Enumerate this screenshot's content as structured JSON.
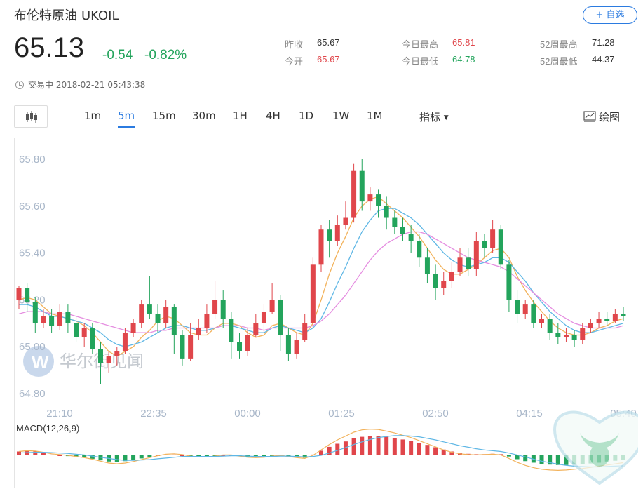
{
  "header": {
    "name": "布伦特原油",
    "code": "UKOIL",
    "watch_label": "+ 自选",
    "price": "65.13",
    "change": "-0.54",
    "change_pct": "-0.82%",
    "status": "交易中 2018-02-21 05:43:38"
  },
  "stats": {
    "prev_close_label": "昨收",
    "prev_close": "65.67",
    "open_label": "今开",
    "open": "65.67",
    "day_high_label": "今日最高",
    "day_high": "65.81",
    "day_low_label": "今日最低",
    "day_low": "64.78",
    "wk52_high_label": "52周最高",
    "wk52_high": "71.28",
    "wk52_low_label": "52周最低",
    "wk52_low": "44.37"
  },
  "toolbar": {
    "tabs": [
      "1m",
      "5m",
      "15m",
      "30m",
      "1H",
      "4H",
      "1D",
      "1W",
      "1M"
    ],
    "active_tab": "5m",
    "indicator_label": "指标",
    "draw_label": "绘图"
  },
  "colors": {
    "up": "#e0464b",
    "down": "#23a45c",
    "ma_fast": "#f2b25b",
    "ma_mid": "#5fb7e5",
    "ma_slow": "#e58de0",
    "accent": "#2b7be0"
  },
  "watermark": "华尔街见闻",
  "chart_data": {
    "type": "candlestick",
    "yticks": [
      "65.80",
      "65.60",
      "65.40",
      "65.20",
      "65.00",
      "64.80"
    ],
    "ylim": [
      64.8,
      65.8
    ],
    "xticks": [
      "21:10",
      "22:35",
      "00:00",
      "01:25",
      "02:50",
      "04:15",
      "05:40"
    ],
    "candles": [
      [
        65.2,
        65.25,
        65.26,
        65.16
      ],
      [
        65.25,
        65.19,
        65.27,
        65.15
      ],
      [
        65.19,
        65.1,
        65.21,
        65.06
      ],
      [
        65.1,
        65.13,
        65.16,
        65.08
      ],
      [
        65.13,
        65.09,
        65.16,
        65.06
      ],
      [
        65.09,
        65.15,
        65.18,
        65.07
      ],
      [
        65.15,
        65.1,
        65.18,
        65.06
      ],
      [
        65.1,
        65.04,
        65.13,
        65.02
      ],
      [
        65.04,
        65.08,
        65.1,
        65.0
      ],
      [
        65.08,
        64.99,
        65.1,
        64.97
      ],
      [
        64.99,
        64.93,
        65.02,
        64.84
      ],
      [
        64.93,
        64.96,
        64.98,
        64.89
      ],
      [
        64.96,
        64.98,
        65.0,
        64.92
      ],
      [
        64.98,
        65.06,
        65.08,
        64.97
      ],
      [
        65.06,
        65.1,
        65.12,
        65.04
      ],
      [
        65.1,
        65.18,
        65.2,
        65.08
      ],
      [
        65.18,
        65.14,
        65.3,
        65.12
      ],
      [
        65.14,
        65.1,
        65.18,
        65.06
      ],
      [
        65.1,
        65.17,
        65.2,
        65.08
      ],
      [
        65.17,
        65.05,
        65.18,
        64.97
      ],
      [
        65.05,
        64.95,
        65.07,
        64.92
      ],
      [
        64.95,
        65.05,
        65.1,
        64.94
      ],
      [
        65.05,
        65.08,
        65.12,
        65.03
      ],
      [
        65.08,
        65.14,
        65.18,
        65.06
      ],
      [
        65.14,
        65.2,
        65.28,
        65.12
      ],
      [
        65.2,
        65.12,
        65.24,
        65.08
      ],
      [
        65.12,
        65.02,
        65.15,
        64.95
      ],
      [
        65.02,
        64.98,
        65.06,
        64.95
      ],
      [
        64.98,
        65.05,
        65.08,
        64.96
      ],
      [
        65.05,
        65.1,
        65.14,
        65.04
      ],
      [
        65.1,
        65.15,
        65.18,
        65.06
      ],
      [
        65.15,
        65.2,
        65.27,
        65.14
      ],
      [
        65.2,
        65.05,
        65.22,
        64.98
      ],
      [
        65.05,
        64.97,
        65.08,
        64.94
      ],
      [
        64.97,
        65.03,
        65.06,
        64.95
      ],
      [
        65.03,
        65.1,
        65.14,
        65.02
      ],
      [
        65.1,
        65.35,
        65.38,
        65.08
      ],
      [
        65.35,
        65.5,
        65.52,
        65.32
      ],
      [
        65.5,
        65.45,
        65.54,
        65.38
      ],
      [
        65.45,
        65.52,
        65.56,
        65.43
      ],
      [
        65.52,
        65.55,
        65.62,
        65.5
      ],
      [
        65.55,
        65.75,
        65.78,
        65.53
      ],
      [
        65.75,
        65.62,
        65.8,
        65.58
      ],
      [
        65.62,
        65.65,
        65.68,
        65.58
      ],
      [
        65.65,
        65.6,
        65.67,
        65.55
      ],
      [
        65.6,
        65.55,
        65.64,
        65.5
      ],
      [
        65.55,
        65.51,
        65.58,
        65.48
      ],
      [
        65.51,
        65.48,
        65.55,
        65.45
      ],
      [
        65.48,
        65.45,
        65.52,
        65.4
      ],
      [
        65.45,
        65.38,
        65.48,
        65.34
      ],
      [
        65.38,
        65.31,
        65.42,
        65.27
      ],
      [
        65.31,
        65.25,
        65.35,
        65.2
      ],
      [
        65.25,
        65.28,
        65.32,
        65.22
      ],
      [
        65.28,
        65.32,
        65.36,
        65.25
      ],
      [
        65.32,
        65.38,
        65.42,
        65.3
      ],
      [
        65.38,
        65.33,
        65.42,
        65.3
      ],
      [
        65.33,
        65.45,
        65.49,
        65.3
      ],
      [
        65.45,
        65.42,
        65.48,
        65.38
      ],
      [
        65.42,
        65.5,
        65.54,
        65.4
      ],
      [
        65.5,
        65.35,
        65.52,
        65.33
      ],
      [
        65.35,
        65.2,
        65.37,
        65.15
      ],
      [
        65.2,
        65.14,
        65.24,
        65.1
      ],
      [
        65.14,
        65.18,
        65.2,
        65.12
      ],
      [
        65.18,
        65.1,
        65.2,
        65.08
      ],
      [
        65.1,
        65.12,
        65.14,
        65.08
      ],
      [
        65.12,
        65.06,
        65.14,
        65.03
      ],
      [
        65.06,
        65.04,
        65.1,
        65.01
      ],
      [
        65.04,
        65.05,
        65.08,
        65.02
      ],
      [
        65.05,
        65.03,
        65.07,
        65.0
      ],
      [
        65.03,
        65.08,
        65.1,
        65.01
      ],
      [
        65.08,
        65.1,
        65.12,
        65.06
      ],
      [
        65.1,
        65.12,
        65.15,
        65.08
      ],
      [
        65.12,
        65.11,
        65.15,
        65.09
      ],
      [
        65.11,
        65.14,
        65.16,
        65.1
      ],
      [
        65.14,
        65.13,
        65.17,
        65.11
      ]
    ],
    "ma_fast": [
      65.2,
      65.21,
      65.2,
      65.17,
      65.14,
      65.13,
      65.12,
      65.11,
      65.09,
      65.06,
      65.02,
      64.98,
      64.96,
      64.98,
      65.0,
      65.04,
      65.07,
      65.11,
      65.13,
      65.12,
      65.09,
      65.06,
      65.05,
      65.05,
      65.08,
      65.1,
      65.1,
      65.09,
      65.06,
      65.04,
      65.05,
      65.09,
      65.1,
      65.08,
      65.06,
      65.05,
      65.1,
      65.2,
      65.31,
      65.4,
      65.47,
      65.55,
      65.6,
      65.63,
      65.64,
      65.61,
      65.58,
      65.55,
      65.51,
      65.47,
      65.42,
      65.37,
      65.33,
      65.31,
      65.31,
      65.33,
      65.35,
      65.38,
      65.41,
      65.42,
      65.38,
      65.3,
      65.24,
      65.19,
      65.15,
      65.11,
      65.08,
      65.06,
      65.05,
      65.05,
      65.06,
      65.08,
      65.09,
      65.11,
      65.12
    ],
    "ma_mid": [
      65.18,
      65.18,
      65.17,
      65.15,
      65.13,
      65.13,
      65.12,
      65.11,
      65.1,
      65.08,
      65.06,
      65.03,
      65.01,
      65.0,
      65.01,
      65.02,
      65.04,
      65.06,
      65.08,
      65.09,
      65.09,
      65.08,
      65.07,
      65.07,
      65.08,
      65.09,
      65.09,
      65.08,
      65.07,
      65.06,
      65.06,
      65.08,
      65.09,
      65.08,
      65.07,
      65.06,
      65.08,
      65.12,
      65.19,
      65.27,
      65.34,
      65.42,
      65.49,
      65.54,
      65.58,
      65.59,
      65.59,
      65.57,
      65.55,
      65.52,
      65.48,
      65.44,
      65.4,
      65.37,
      65.35,
      65.34,
      65.35,
      65.36,
      65.38,
      65.38,
      65.36,
      65.32,
      65.28,
      65.23,
      65.19,
      65.15,
      65.12,
      65.09,
      65.07,
      65.06,
      65.06,
      65.07,
      65.08,
      65.09,
      65.1
    ],
    "ma_slow": [
      65.14,
      65.15,
      65.15,
      65.15,
      65.14,
      65.14,
      65.14,
      65.13,
      65.12,
      65.11,
      65.1,
      65.09,
      65.08,
      65.07,
      65.06,
      65.06,
      65.06,
      65.07,
      65.07,
      65.08,
      65.08,
      65.08,
      65.08,
      65.08,
      65.08,
      65.09,
      65.09,
      65.09,
      65.08,
      65.08,
      65.07,
      65.08,
      65.08,
      65.08,
      65.08,
      65.08,
      65.09,
      65.11,
      65.14,
      65.18,
      65.22,
      65.27,
      65.32,
      65.37,
      65.41,
      65.44,
      65.46,
      65.48,
      65.49,
      65.49,
      65.48,
      65.46,
      65.44,
      65.42,
      65.4,
      65.38,
      65.37,
      65.36,
      65.35,
      65.34,
      65.32,
      65.29,
      65.26,
      65.23,
      65.2,
      65.17,
      65.14,
      65.12,
      65.1,
      65.09,
      65.08,
      65.08,
      65.08,
      65.08,
      65.09
    ],
    "macd_label": "MACD(12,26,9)",
    "macd_hist": [
      0.01,
      0.012,
      0.01,
      0.006,
      0.002,
      0.0,
      -0.002,
      -0.004,
      -0.006,
      -0.009,
      -0.013,
      -0.016,
      -0.017,
      -0.015,
      -0.012,
      -0.008,
      -0.004,
      0.0,
      0.002,
      0.002,
      0.0,
      -0.003,
      -0.004,
      -0.004,
      -0.002,
      0.0,
      0.0,
      -0.002,
      -0.004,
      -0.005,
      -0.004,
      -0.002,
      -0.001,
      -0.003,
      -0.005,
      -0.006,
      0.002,
      0.012,
      0.022,
      0.03,
      0.036,
      0.044,
      0.048,
      0.05,
      0.05,
      0.048,
      0.045,
      0.041,
      0.037,
      0.032,
      0.027,
      0.021,
      0.015,
      0.01,
      0.006,
      0.004,
      0.003,
      0.003,
      0.004,
      0.003,
      -0.003,
      -0.01,
      -0.015,
      -0.019,
      -0.022,
      -0.024,
      -0.025,
      -0.025,
      -0.024,
      -0.023,
      -0.021,
      -0.019,
      -0.016,
      -0.014,
      -0.012
    ],
    "macd_dif": [
      0.01,
      0.012,
      0.011,
      0.008,
      0.004,
      0.002,
      0.0,
      -0.003,
      -0.006,
      -0.01,
      -0.015,
      -0.02,
      -0.022,
      -0.02,
      -0.016,
      -0.011,
      -0.006,
      -0.001,
      0.003,
      0.004,
      0.002,
      -0.002,
      -0.004,
      -0.004,
      -0.002,
      0.001,
      0.001,
      -0.002,
      -0.005,
      -0.006,
      -0.005,
      -0.002,
      0.0,
      -0.003,
      -0.006,
      -0.008,
      0.0,
      0.014,
      0.028,
      0.04,
      0.05,
      0.06,
      0.066,
      0.068,
      0.067,
      0.063,
      0.058,
      0.052,
      0.046,
      0.038,
      0.03,
      0.022,
      0.014,
      0.008,
      0.004,
      0.002,
      0.001,
      0.002,
      0.003,
      0.001,
      -0.008,
      -0.018,
      -0.026,
      -0.032,
      -0.036,
      -0.038,
      -0.039,
      -0.038,
      -0.036,
      -0.034,
      -0.031,
      -0.028,
      -0.025,
      -0.022,
      -0.019
    ],
    "macd_dea": [
      0.006,
      0.007,
      0.008,
      0.008,
      0.007,
      0.006,
      0.005,
      0.003,
      0.001,
      -0.002,
      -0.005,
      -0.008,
      -0.011,
      -0.013,
      -0.013,
      -0.012,
      -0.011,
      -0.009,
      -0.007,
      -0.005,
      -0.003,
      -0.003,
      -0.003,
      -0.003,
      -0.003,
      -0.002,
      -0.001,
      -0.001,
      -0.002,
      -0.003,
      -0.003,
      -0.003,
      -0.002,
      -0.002,
      -0.003,
      -0.004,
      -0.003,
      0.0,
      0.006,
      0.013,
      0.02,
      0.028,
      0.035,
      0.041,
      0.046,
      0.049,
      0.051,
      0.051,
      0.05,
      0.048,
      0.044,
      0.04,
      0.035,
      0.03,
      0.025,
      0.021,
      0.017,
      0.014,
      0.012,
      0.01,
      0.006,
      0.001,
      -0.004,
      -0.01,
      -0.015,
      -0.019,
      -0.023,
      -0.026,
      -0.028,
      -0.029,
      -0.03,
      -0.03,
      -0.029,
      -0.028,
      -0.027
    ]
  }
}
